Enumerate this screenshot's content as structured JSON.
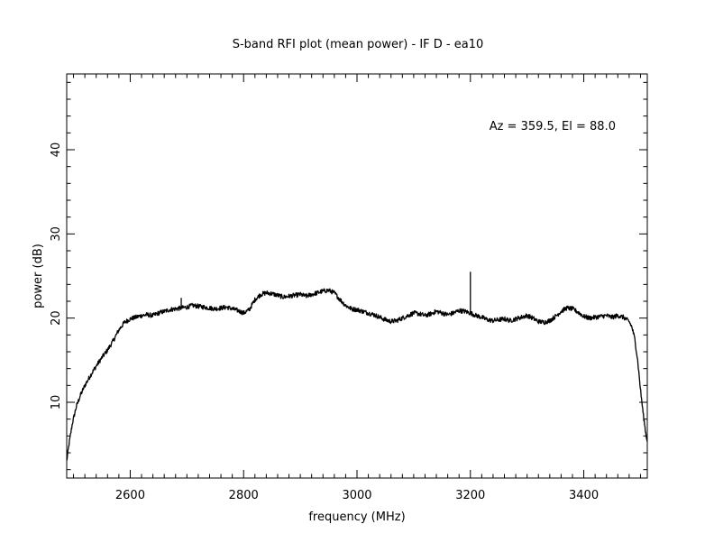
{
  "chart_data": {
    "type": "line",
    "title": "S-band RFI plot (mean power) - IF D - ea10",
    "xlabel": "frequency (MHz)",
    "ylabel": "power (dB)",
    "annotation": "Az = 359.5, El = 88.0",
    "xlim": [
      2488,
      3512
    ],
    "ylim": [
      1,
      49
    ],
    "x_major_ticks": [
      2600,
      2800,
      3000,
      3200,
      3400
    ],
    "x_minor_step": 20,
    "y_major_ticks": [
      10,
      20,
      30,
      40
    ],
    "y_minor_step": 2,
    "grid": false,
    "legend": "none",
    "line_color": "#000000",
    "series": [
      {
        "x": [
          2488,
          2492,
          2498,
          2505,
          2512,
          2520,
          2530,
          2540,
          2550,
          2560,
          2570,
          2580,
          2590,
          2600,
          2610,
          2620,
          2630,
          2640,
          2650,
          2660,
          2670,
          2680,
          2690,
          2700,
          2710,
          2720,
          2730,
          2740,
          2750,
          2760,
          2770,
          2780,
          2790,
          2800,
          2810,
          2820,
          2830,
          2840,
          2850,
          2860,
          2870,
          2880,
          2890,
          2900,
          2910,
          2920,
          2930,
          2940,
          2950,
          2960,
          2970,
          2980,
          2990,
          3000,
          3010,
          3020,
          3030,
          3040,
          3050,
          3060,
          3070,
          3080,
          3090,
          3100,
          3110,
          3120,
          3130,
          3140,
          3150,
          3160,
          3170,
          3180,
          3190,
          3200,
          3210,
          3220,
          3230,
          3240,
          3250,
          3260,
          3270,
          3280,
          3290,
          3300,
          3310,
          3320,
          3330,
          3340,
          3350,
          3360,
          3370,
          3380,
          3390,
          3400,
          3410,
          3420,
          3430,
          3440,
          3450,
          3460,
          3470,
          3480,
          3485,
          3490,
          3495,
          3500,
          3505,
          3510,
          3512
        ],
        "y": [
          3.0,
          5.0,
          7.5,
          9.5,
          10.8,
          12.0,
          13.2,
          14.3,
          15.3,
          16.2,
          17.3,
          18.6,
          19.5,
          19.9,
          20.1,
          20.3,
          20.4,
          20.3,
          20.6,
          20.8,
          21.0,
          21.1,
          21.2,
          21.3,
          21.5,
          21.4,
          21.3,
          21.2,
          21.1,
          21.2,
          21.3,
          21.1,
          20.9,
          20.6,
          21.0,
          22.2,
          22.8,
          23.0,
          22.9,
          22.7,
          22.5,
          22.6,
          22.7,
          22.8,
          22.6,
          22.8,
          23.0,
          23.2,
          23.3,
          23.0,
          22.2,
          21.5,
          21.1,
          21.0,
          20.8,
          20.6,
          20.4,
          20.1,
          19.8,
          19.6,
          19.7,
          20.0,
          20.3,
          20.6,
          20.5,
          20.3,
          20.5,
          20.8,
          20.6,
          20.4,
          20.6,
          20.9,
          20.8,
          20.6,
          20.3,
          20.1,
          19.8,
          19.7,
          19.8,
          19.9,
          19.7,
          19.9,
          20.1,
          20.3,
          20.0,
          19.6,
          19.5,
          19.7,
          20.2,
          20.8,
          21.2,
          21.1,
          20.7,
          20.2,
          20.0,
          20.1,
          20.2,
          20.3,
          20.1,
          20.3,
          20.1,
          19.6,
          18.9,
          17.5,
          15.0,
          11.5,
          8.5,
          6.0,
          5.5
        ]
      }
    ],
    "spikes": [
      {
        "x": 2690,
        "base": 21.2,
        "top": 22.4
      },
      {
        "x": 3200,
        "base": 20.6,
        "top": 25.5
      }
    ]
  }
}
